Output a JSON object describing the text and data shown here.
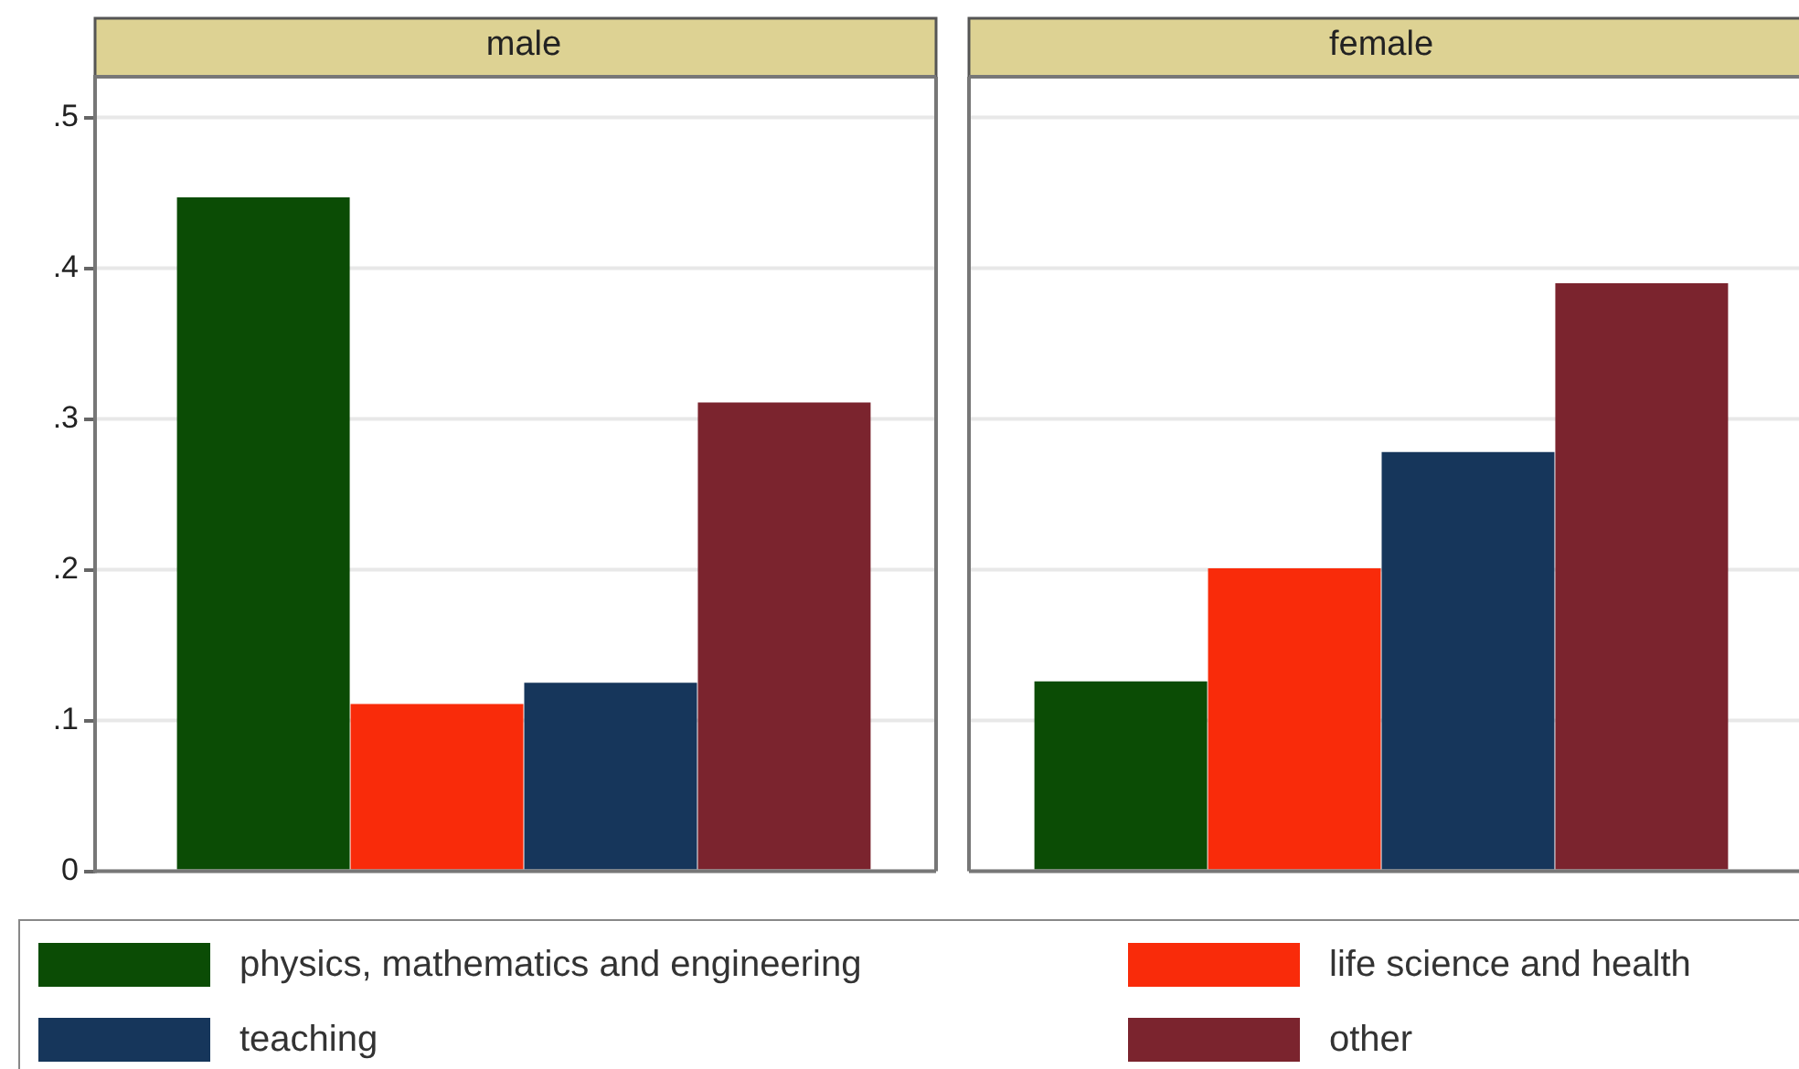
{
  "chart_data": {
    "type": "bar",
    "categories": [
      "male",
      "female"
    ],
    "series": [
      {
        "name": "physics, mathematics and engineering",
        "color": "#0b4c05",
        "values": [
          0.447,
          0.126
        ]
      },
      {
        "name": "life science and health",
        "color": "#f92b0a",
        "values": [
          0.111,
          0.201
        ]
      },
      {
        "name": "teaching",
        "color": "#16365b",
        "values": [
          0.125,
          0.278
        ]
      },
      {
        "name": "other",
        "color": "#7b242e",
        "values": [
          0.311,
          0.39
        ]
      }
    ],
    "ylim": [
      0,
      0.527
    ],
    "yticks": [
      0,
      {
        "value": 0.1,
        "label": ".1"
      },
      {
        "value": 0.2,
        "label": ".2"
      },
      {
        "value": 0.3,
        "label": ".3"
      },
      {
        "value": 0.4,
        "label": ".4"
      },
      {
        "value": 0.5,
        "label": ".5"
      }
    ],
    "grid": "y",
    "legend": "bottom"
  }
}
